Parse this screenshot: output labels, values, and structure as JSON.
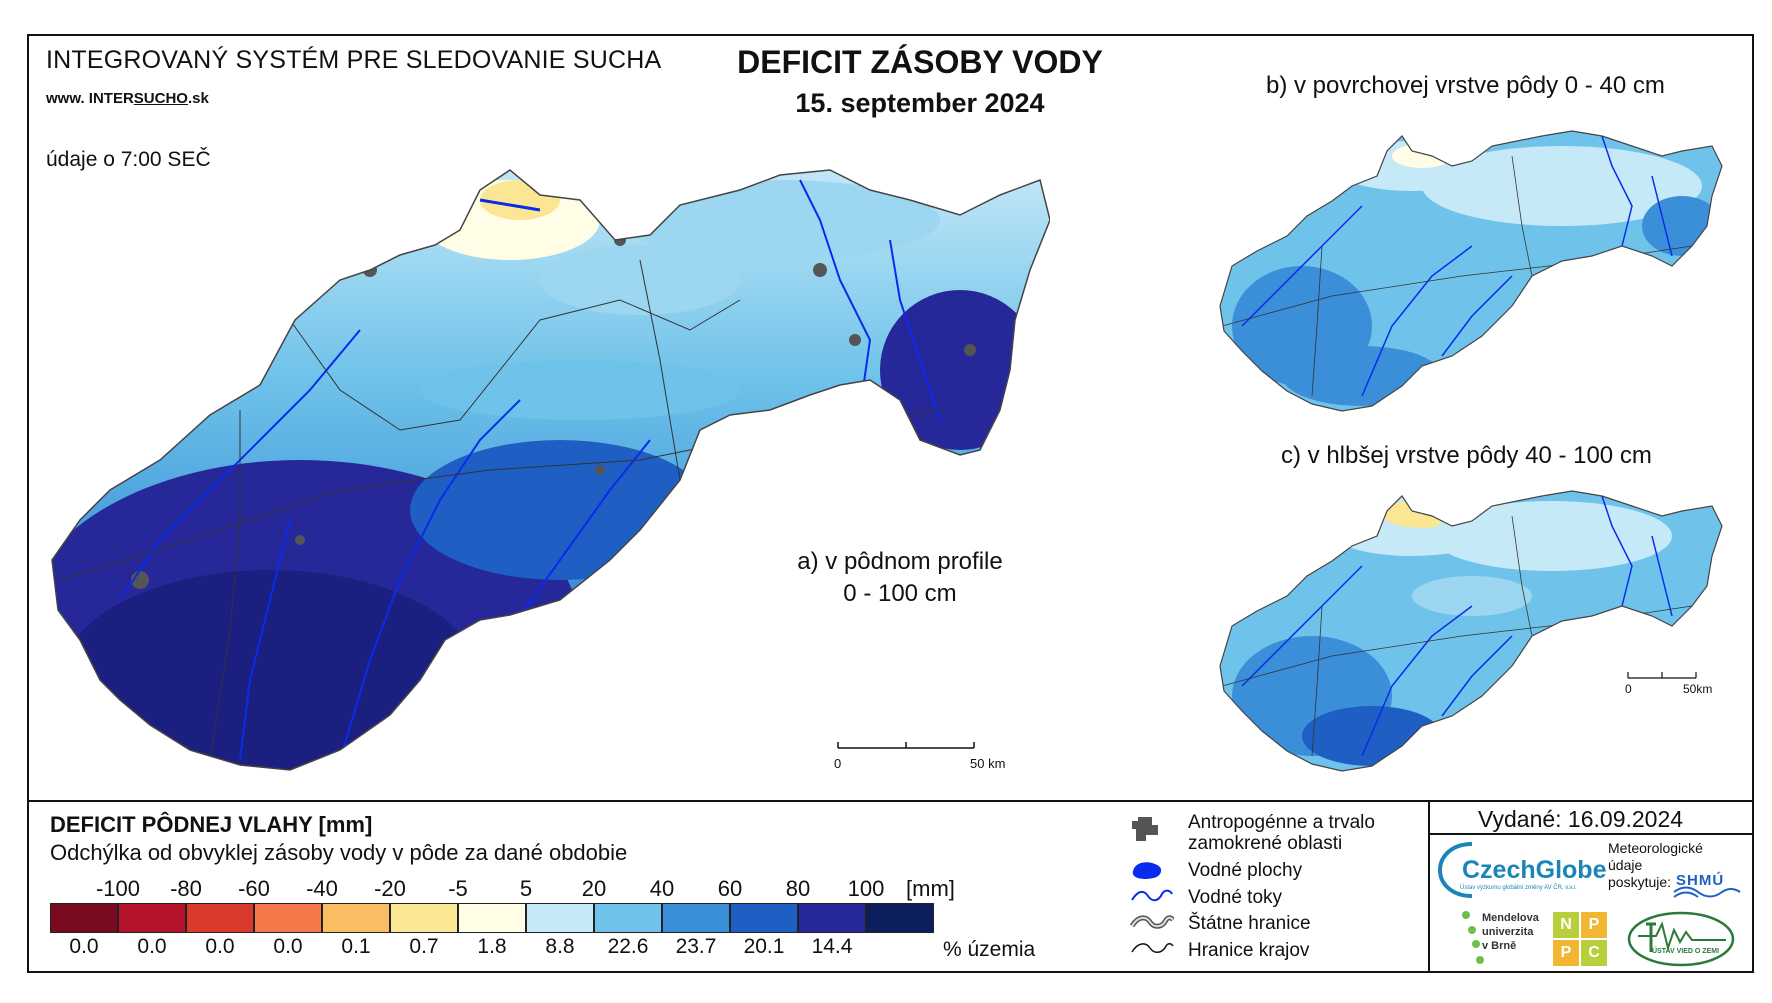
{
  "header": {
    "system_title": "INTEGROVANÝ SYSTÉM PRE SLEDOVANIE SUCHA",
    "website_prefix": "www. INTER",
    "website_underlined": "SUCHO",
    "website_suffix": ".sk",
    "data_time": "údaje o 7:00 SEČ",
    "title": "DEFICIT ZÁSOBY VODY",
    "date": "15. september 2024"
  },
  "maps": {
    "a_label_line1": "a) v pôdnom profile",
    "a_label_line2": "0 - 100 cm",
    "b_label": "b) v povrchovej vrstve pôdy 0 - 40 cm",
    "c_label": "c) v hlbšej vrstve pôdy 40 - 100 cm",
    "scale_a_start": "0",
    "scale_a_end": "50 km",
    "scale_c_start": "0",
    "scale_c_end": "50km"
  },
  "legend": {
    "title": "DEFICIT PÔDNEJ VLAHY [mm]",
    "subtitle": "Odchýlka od obvyklej zásoby vody v pôde za dané obdobie",
    "unit": "[mm]",
    "percent_label": "% územia",
    "ticks": [
      "-100",
      "-80",
      "-60",
      "-40",
      "-20",
      "-5",
      "5",
      "20",
      "40",
      "60",
      "80",
      "100"
    ],
    "classes": [
      {
        "color": "#7a0a1f",
        "percent": "0.0"
      },
      {
        "color": "#b5132b",
        "percent": "0.0"
      },
      {
        "color": "#d93a2b",
        "percent": "0.0"
      },
      {
        "color": "#f5784a",
        "percent": "0.0"
      },
      {
        "color": "#fbbd62",
        "percent": "0.1"
      },
      {
        "color": "#fbe693",
        "percent": "0.7"
      },
      {
        "color": "#fffde6",
        "percent": "1.8"
      },
      {
        "color": "#c6e9f7",
        "percent": "8.8"
      },
      {
        "color": "#6fc3ea",
        "percent": "22.6"
      },
      {
        "color": "#3a8fd8",
        "percent": "23.7"
      },
      {
        "color": "#1f5ec2",
        "percent": "20.1"
      },
      {
        "color": "#26289a",
        "percent": "14.4"
      },
      {
        "color": "#0d1e5c",
        "percent": ""
      }
    ]
  },
  "map_key": {
    "urban_line1": "Antropogénne a trvalo",
    "urban_line2": "zamokrené oblasti",
    "water_bodies": "Vodné plochy",
    "rivers": "Vodné toky",
    "state_border": "Štátne hranice",
    "region_border": "Hranice krajov"
  },
  "footer": {
    "issued": "Vydané: 16.09.2024",
    "czechglobe": "CzechGlobe",
    "czechglobe_sub": "Ústav výzkumu globální změny AV ČR, v.v.i.",
    "meteo_line1": "Meteorologické",
    "meteo_line2": "údaje",
    "meteo_line3": "poskytuje:",
    "shmu": "SHMÚ",
    "mendel_line1": "Mendelova",
    "mendel_line2": "univerzita",
    "mendel_line3": "v Brně",
    "nppc_letters": [
      "N",
      "P",
      "P",
      "C"
    ],
    "ustav": "ÚSTAV VIED O ZEMI"
  }
}
